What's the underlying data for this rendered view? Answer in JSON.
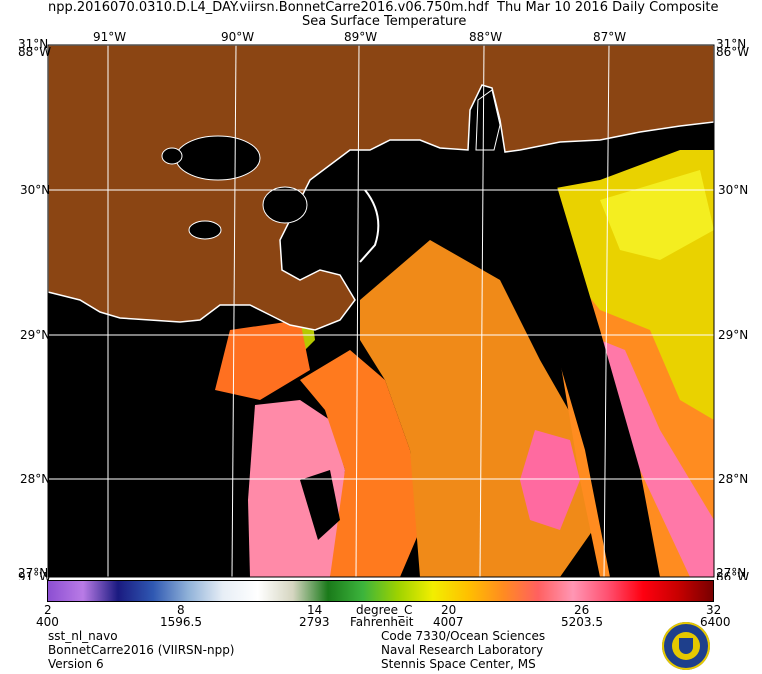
{
  "header": {
    "file_name": "npp.2016070.0310.D.L4_DAY.viirsn.BonnetCarre2016.v06.750m.hdf",
    "composite": "Thu Mar 10 2016 Daily Composite",
    "product": "Sea Surface Temperature"
  },
  "map": {
    "lon_labels": [
      "91°W",
      "90°W",
      "89°W",
      "88°W",
      "87°W"
    ],
    "lat_labels": [
      "30°N",
      "29°N",
      "28°N"
    ],
    "corner_top_left": "31°N",
    "corner_top_left_overlap": "88°W",
    "corner_top_right": "31°N",
    "corner_top_right_overlap": "86°W",
    "corner_bottom_left": "27°N",
    "corner_bottom_left_overlap": "91°W",
    "corner_bottom_right": "27°N",
    "corner_bottom_right_overlap": "86°W",
    "colors": {
      "land": "#8b4513",
      "water_nodata": "#000000",
      "coast": "#ffffff",
      "grid": "#ffffff"
    }
  },
  "colorbar": {
    "celsius_ticks": [
      "2",
      "8",
      "14",
      "20",
      "26",
      "32"
    ],
    "counts_ticks": [
      "400",
      "1596.5",
      "2793",
      "4007",
      "5203.5",
      "6400"
    ],
    "unit_c": "degree_C",
    "unit_f": "Fahrenheit",
    "gradient": [
      "#8c4fd2",
      "#b97be6",
      "#1a1a80",
      "#2f58b2",
      "#8fb1d8",
      "#e7eef6",
      "#ffffff",
      "#d5d5c0",
      "#1a7a1a",
      "#3cb43c",
      "#9ed200",
      "#f2ee00",
      "#ffc000",
      "#ff8c20",
      "#ff6060",
      "#ff96b4",
      "#ff5070",
      "#ff0010",
      "#c80000",
      "#780000"
    ]
  },
  "footer": {
    "left": [
      "sst_nl_navo",
      "BonnetCarre2016 (VIIRSN-npp)",
      "Version 6"
    ],
    "center": [
      "Code 7330/Ocean Sciences",
      "Naval Research Laboratory",
      "Stennis Space Center, MS"
    ]
  }
}
